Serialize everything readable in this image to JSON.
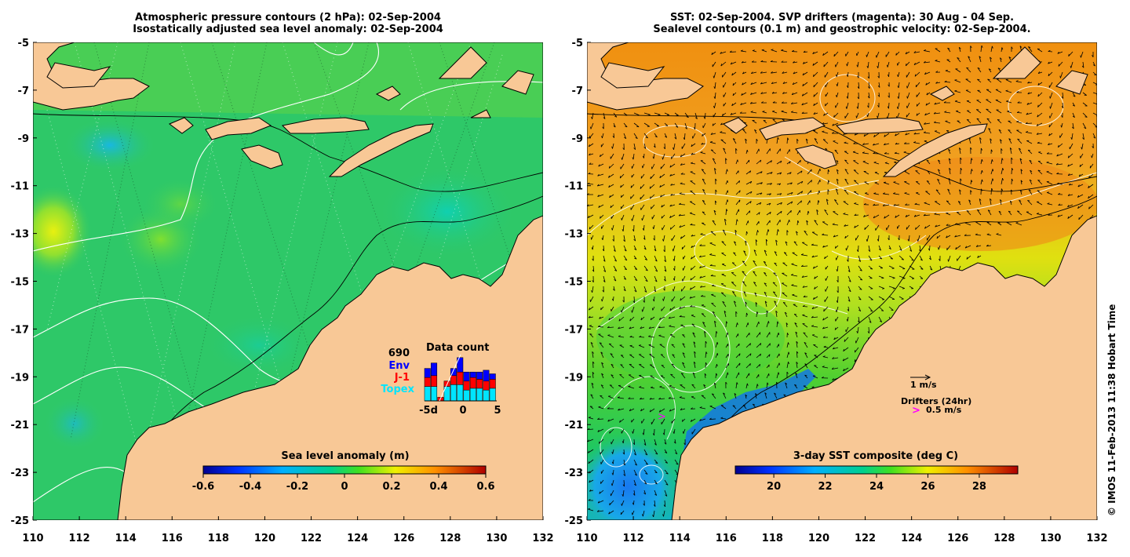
{
  "left_panel": {
    "title_line1": "Atmospheric pressure contours (2 hPa): 02-Sep-2004",
    "title_line2": "Isostatically adjusted sea level anomaly: 02-Sep-2004",
    "colorbar": {
      "label": "Sea level anomaly (m)",
      "ticks": [
        "-0.6",
        "-0.4",
        "-0.2",
        "0",
        "0.2",
        "0.4",
        "0.6"
      ]
    },
    "data_count": {
      "total": "690",
      "title": "Data count",
      "legend": [
        {
          "label": "Env",
          "color": "#0000ff"
        },
        {
          "label": "J-1",
          "color": "#ff0000"
        },
        {
          "label": "Topex",
          "color": "#00e5ff"
        }
      ],
      "x_ticks": [
        "-5d",
        "0",
        "5"
      ],
      "bars": [
        {
          "day": -5,
          "env": 5,
          "j1": 5,
          "topex": 8
        },
        {
          "day": -4,
          "env": 7,
          "j1": 6,
          "topex": 8
        },
        {
          "day": -3,
          "env": 0,
          "j1": 2,
          "topex": 0
        },
        {
          "day": -2,
          "env": 0,
          "j1": 3,
          "topex": 8
        },
        {
          "day": -1,
          "env": 4,
          "j1": 5,
          "topex": 9
        },
        {
          "day": 0,
          "env": 8,
          "j1": 7,
          "topex": 9
        },
        {
          "day": 1,
          "env": 5,
          "j1": 5,
          "topex": 6
        },
        {
          "day": 2,
          "env": 3,
          "j1": 6,
          "topex": 7
        },
        {
          "day": 3,
          "env": 4,
          "j1": 5,
          "topex": 7
        },
        {
          "day": 4,
          "env": 6,
          "j1": 5,
          "topex": 6
        },
        {
          "day": 5,
          "env": 3,
          "j1": 5,
          "topex": 7
        }
      ]
    }
  },
  "right_panel": {
    "title_line1": "SST: 02-Sep-2004. SVP drifters (magenta): 30 Aug - 04 Sep.",
    "title_line2": "Sealevel contours (0.1 m) and geostrophic velocity: 02-Sep-2004.",
    "colorbar": {
      "label": "3-day SST composite (deg C)",
      "ticks": [
        "20",
        "22",
        "24",
        "26",
        "28"
      ]
    },
    "velocity_legend": "1 m/s",
    "drifters_legend_title": "Drifters (24hr)",
    "drifters_legend_value": "0.5 m/s",
    "drifter_symbol": ">"
  },
  "axes": {
    "lat_ticks": [
      "-5",
      "-7",
      "-9",
      "-11",
      "-13",
      "-15",
      "-17",
      "-19",
      "-21",
      "-23",
      "-25"
    ],
    "lon_ticks": [
      "110",
      "112",
      "114",
      "116",
      "118",
      "120",
      "122",
      "124",
      "126",
      "128",
      "130",
      "132"
    ]
  },
  "credit": "© IMOS 11-Feb-2013 11:38 Hobart Time",
  "colors": {
    "land": "#f8c896",
    "ocean_left": "#2ec868",
    "ocean_right": "#e09018",
    "coastline": "#000000",
    "contour": "#ffffff"
  }
}
